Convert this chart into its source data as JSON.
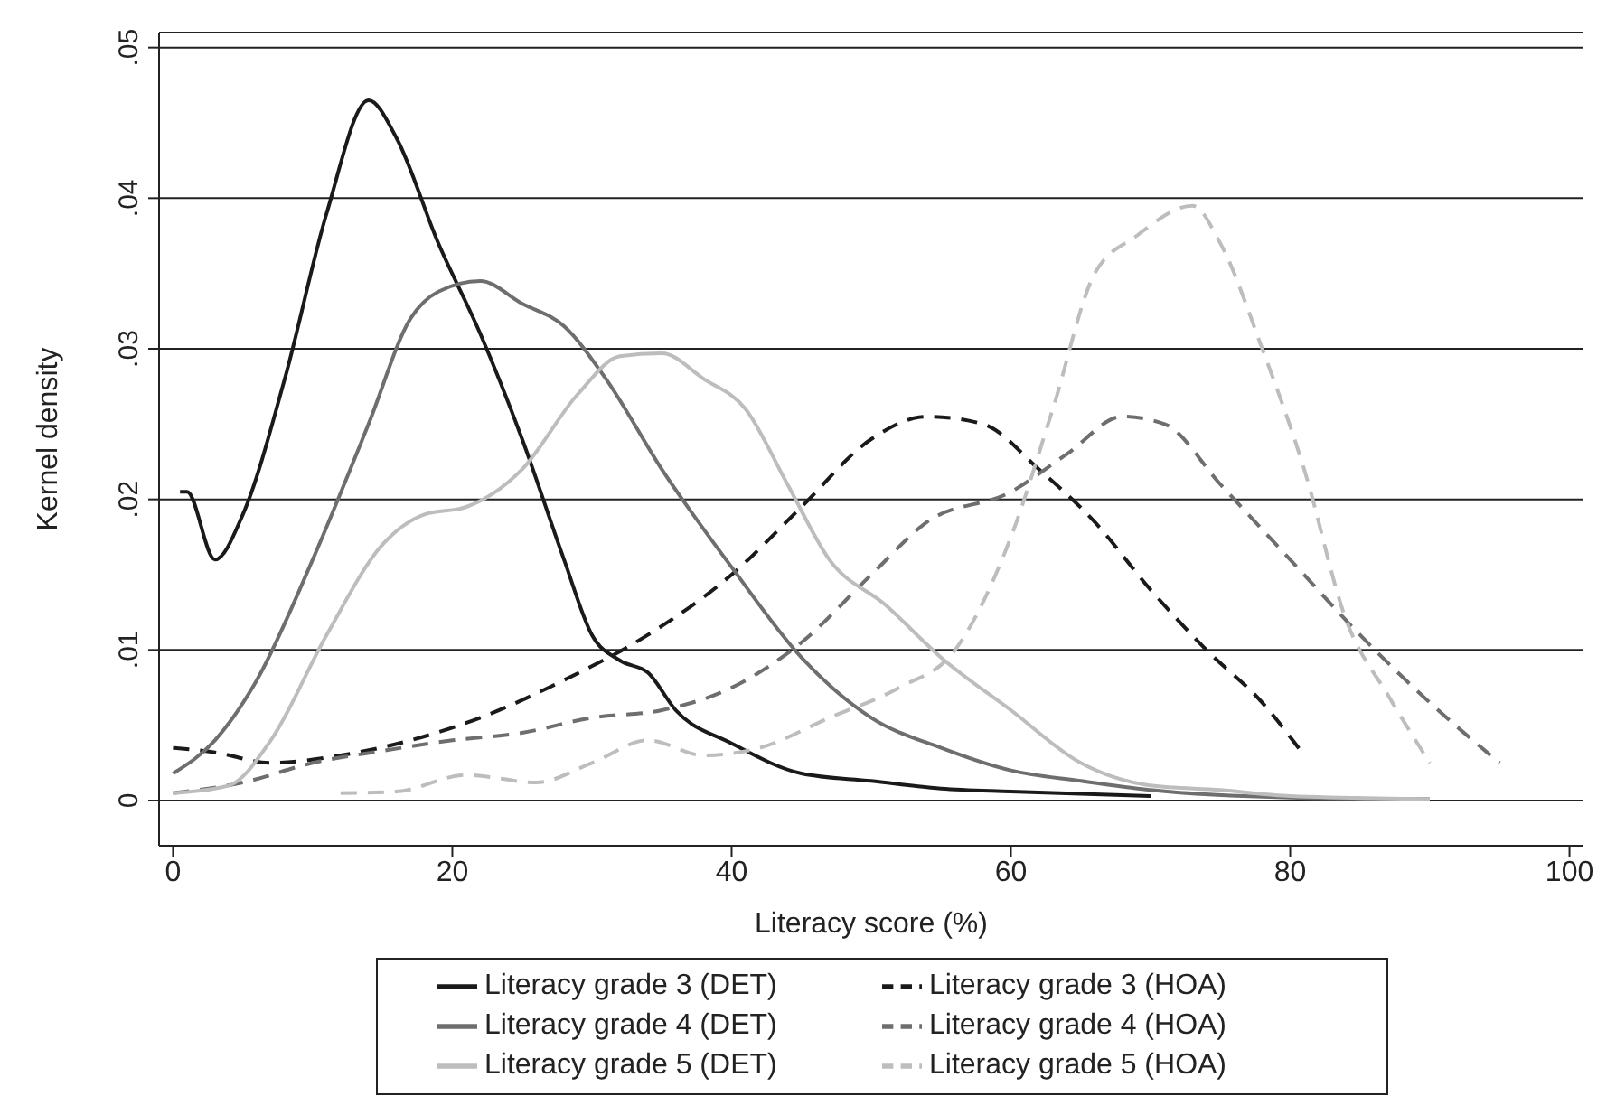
{
  "chart_data": {
    "type": "line",
    "xlabel": "Literacy score (%)",
    "ylabel": "Kernel density",
    "xlim": [
      -1,
      101
    ],
    "xticks": [
      0,
      20,
      40,
      60,
      80,
      100
    ],
    "ylim": [
      -0.003,
      0.051
    ],
    "yticks": [
      {
        "value": 0,
        "label": "0"
      },
      {
        "value": 0.01,
        "label": ".01"
      },
      {
        "value": 0.02,
        "label": ".02"
      },
      {
        "value": 0.03,
        "label": ".03"
      },
      {
        "value": 0.04,
        "label": ".04"
      },
      {
        "value": 0.05,
        "label": ".05"
      }
    ],
    "grid": "y",
    "legend": "bottom",
    "marker": "none",
    "series": [
      {
        "name": "Literacy grade 3 (DET)",
        "color": "#1a1a1a",
        "line_style": "solid",
        "x": [
          0.5,
          1,
          3,
          5,
          8,
          11,
          14,
          16,
          19,
          22,
          25,
          28,
          30,
          32,
          34,
          36,
          40,
          45,
          50,
          55,
          60,
          70
        ],
        "values": [
          0.0205,
          0.0205,
          0.016,
          0.019,
          0.028,
          0.039,
          0.0465,
          0.044,
          0.037,
          0.031,
          0.024,
          0.016,
          0.011,
          0.0093,
          0.0085,
          0.006,
          0.0038,
          0.0018,
          0.0013,
          0.0008,
          0.0006,
          0.0003
        ]
      },
      {
        "name": "Literacy grade 3 (HOA)",
        "color": "#1a1a1a",
        "line_style": "dashed",
        "x": [
          0,
          3,
          7,
          12,
          17,
          22,
          28,
          34,
          40,
          45,
          50,
          54,
          58,
          62,
          66,
          70,
          74,
          78,
          81
        ],
        "values": [
          0.0035,
          0.0032,
          0.0025,
          0.003,
          0.004,
          0.0055,
          0.008,
          0.011,
          0.015,
          0.0195,
          0.024,
          0.0255,
          0.025,
          0.022,
          0.0185,
          0.014,
          0.01,
          0.0065,
          0.003
        ]
      },
      {
        "name": "Literacy grade 4 (DET)",
        "color": "#6e6e6e",
        "line_style": "solid",
        "x": [
          0,
          3,
          6,
          10,
          14,
          17,
          19,
          22,
          25,
          28,
          31,
          35,
          40,
          45,
          50,
          55,
          60,
          65,
          70,
          80,
          90
        ],
        "values": [
          0.0018,
          0.004,
          0.008,
          0.016,
          0.025,
          0.032,
          0.0338,
          0.0345,
          0.033,
          0.0315,
          0.028,
          0.022,
          0.0155,
          0.0095,
          0.0055,
          0.0035,
          0.002,
          0.0013,
          0.0007,
          0.0002,
          0.0001
        ]
      },
      {
        "name": "Literacy grade 4 (HOA)",
        "color": "#6e6e6e",
        "line_style": "dashed",
        "x": [
          0,
          5,
          10,
          15,
          20,
          25,
          30,
          35,
          40,
          45,
          50,
          54,
          60,
          64,
          68,
          71,
          75,
          80,
          85,
          90,
          95
        ],
        "values": [
          0.0005,
          0.0012,
          0.0025,
          0.0033,
          0.004,
          0.0045,
          0.0055,
          0.006,
          0.0075,
          0.0105,
          0.015,
          0.0185,
          0.0205,
          0.023,
          0.0255,
          0.025,
          0.021,
          0.016,
          0.011,
          0.0065,
          0.0025
        ]
      },
      {
        "name": "Literacy grade 5 (DET)",
        "color": "#bdbdbd",
        "line_style": "solid",
        "x": [
          0,
          4,
          7,
          11,
          15,
          18,
          21,
          25,
          29,
          32,
          35,
          38,
          41,
          44,
          47,
          51,
          55,
          60,
          65,
          70,
          75,
          80,
          90
        ],
        "values": [
          0.0005,
          0.001,
          0.004,
          0.011,
          0.017,
          0.019,
          0.0195,
          0.022,
          0.027,
          0.0295,
          0.0297,
          0.028,
          0.026,
          0.021,
          0.016,
          0.013,
          0.0095,
          0.006,
          0.0025,
          0.001,
          0.0007,
          0.0003,
          0.0001
        ]
      },
      {
        "name": "Literacy grade 5 (HOA)",
        "color": "#bdbdbd",
        "line_style": "dashed",
        "x": [
          12,
          16,
          21,
          26,
          30,
          34,
          38,
          42,
          47,
          52,
          56,
          60,
          63,
          66,
          69,
          73,
          75,
          78,
          81,
          84,
          87,
          90
        ],
        "values": [
          0.0005,
          0.0006,
          0.0017,
          0.0012,
          0.0025,
          0.004,
          0.003,
          0.0035,
          0.0055,
          0.0075,
          0.01,
          0.0175,
          0.026,
          0.035,
          0.0375,
          0.0395,
          0.037,
          0.03,
          0.022,
          0.012,
          0.007,
          0.0025
        ]
      }
    ]
  }
}
